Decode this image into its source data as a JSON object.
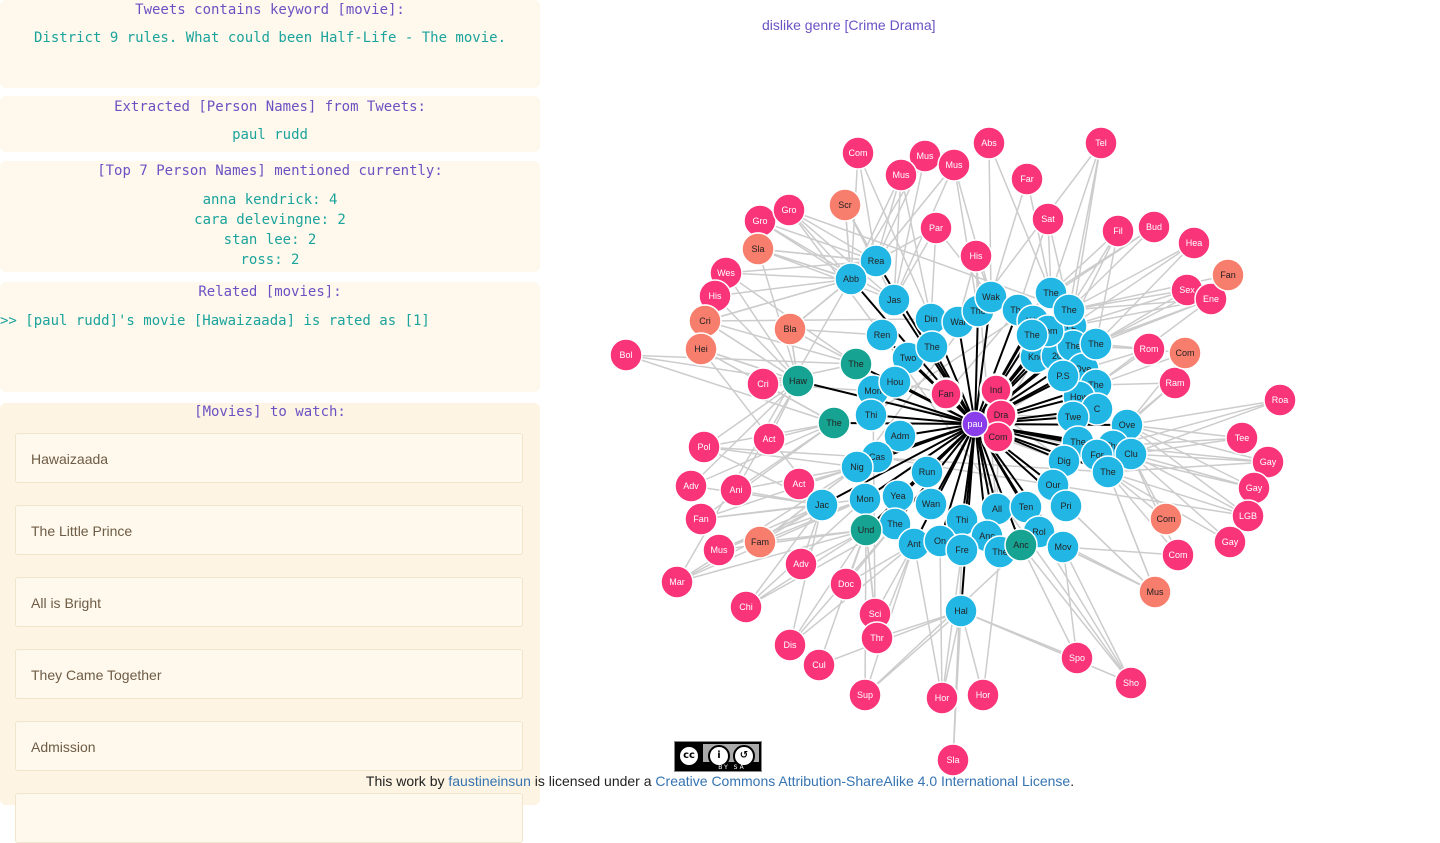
{
  "tweets_panel": {
    "title": "Tweets contains keyword [movie]:",
    "tweet": "District 9 rules. What could been Half-Life - The movie."
  },
  "names_panel": {
    "title": "Extracted [Person Names] from Tweets:",
    "name": "paul rudd"
  },
  "top_names_panel": {
    "title": "[Top 7 Person Names] mentioned currently:",
    "items": [
      "anna kendrick: 4",
      "cara delevingne: 2",
      "stan lee: 2",
      "ross: 2"
    ]
  },
  "related_panel": {
    "title": "Related [movies]:",
    "line": ">> [paul rudd]'s movie [Hawaizaada] is rated as [1]"
  },
  "watch_panel": {
    "title": "[Movies] to watch:",
    "movies": [
      "Hawaizaada",
      "The Little Prince",
      "All is Bright",
      "They Came Together",
      "Admission"
    ]
  },
  "graph": {
    "caption": "dislike genre [Crime Drama]",
    "colors": {
      "person": "#8a3dea",
      "movie": "#22b6e5",
      "genre": "#fa3479",
      "genre_alt": "#f77d6c",
      "movie_alt": "#16a391"
    },
    "center_label": "pau",
    "movie_labels": [
      "Din",
      "Wal",
      "The",
      "Wak",
      "The",
      "We",
      "The",
      "I L",
      "Ren",
      "Two",
      "The",
      "Kno",
      "20",
      "The",
      "Ove",
      "The",
      "Mon",
      "Hou",
      "How",
      "C",
      "Thi",
      "Twe",
      "Ove",
      "Adm",
      "Cas",
      "The",
      "The",
      "Clu",
      "Nig",
      "Run",
      "For",
      "Dig",
      "The",
      "Mon",
      "Yea",
      "Wan",
      "Our",
      "All",
      "Ten",
      "Pri",
      "Jac",
      "The",
      "Thi",
      "Anc",
      "Rol",
      "Ant",
      "On",
      "Fre",
      "The",
      "Mov",
      "Hal",
      "Rea",
      "Abb",
      "Jas",
      "Com",
      "P.S",
      "The",
      "The",
      "The"
    ],
    "alt_movie_labels": [
      "The",
      "Haw",
      "The",
      "Und",
      "Anc"
    ],
    "genre_labels": [
      "Com",
      "Mus",
      "Mus",
      "Abs",
      "Tel",
      "Mus",
      "Far",
      "Gro",
      "Gro",
      "Scr",
      "Sat",
      "Fil",
      "Bud",
      "Hea",
      "Par",
      "Sla",
      "His",
      "Wes",
      "His",
      "Sex",
      "Ene",
      "Cri",
      "Bla",
      "Rom",
      "Hei",
      "Bol",
      "Cri",
      "Ind",
      "Fan",
      "Dra",
      "Com",
      "Roa",
      "Pol",
      "Act",
      "Tee",
      "Gay",
      "Gay",
      "Adv",
      "Ani",
      "Act",
      "LGB",
      "Fan",
      "Gay",
      "Mus",
      "Mar",
      "Adv",
      "Doc",
      "Chi",
      "Sci",
      "Thr",
      "Dis",
      "Cul",
      "Sup",
      "Hor",
      "Hor",
      "Spo",
      "Sho",
      "Sla",
      "Com",
      "Mus",
      "Ram"
    ],
    "alt_genre_labels": [
      "Scr",
      "Sla",
      "Fan",
      "Cri",
      "Bla",
      "Hei",
      "Com",
      "Fam",
      "Com",
      "Mus"
    ]
  },
  "footer": {
    "prefix": "This work by",
    "author": "faustineinsun",
    "middle": "is licensed under a",
    "license": "Creative Commons Attribution-ShareAlike 4.0 International License",
    "suffix": ".",
    "badge_text": "BY SA"
  }
}
